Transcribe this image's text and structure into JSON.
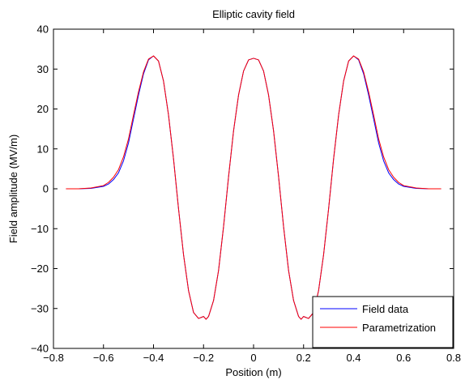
{
  "chart_data": {
    "type": "line",
    "title": "Elliptic cavity field",
    "xlabel": "Position (m)",
    "ylabel": "Field amplitude (MV/m)",
    "xlim": [
      -0.8,
      0.8
    ],
    "ylim": [
      -40,
      40
    ],
    "xticks": [
      -0.8,
      -0.6,
      -0.4,
      -0.2,
      0,
      0.2,
      0.4,
      0.6,
      0.8
    ],
    "xtick_labels": [
      "−0.8",
      "−0.6",
      "−0.4",
      "−0.2",
      "0",
      "0.2",
      "0.4",
      "0.6",
      "0.8"
    ],
    "yticks": [
      -40,
      -30,
      -20,
      -10,
      0,
      10,
      20,
      30,
      40
    ],
    "ytick_labels": [
      "−40",
      "−30",
      "−20",
      "−10",
      "0",
      "10",
      "20",
      "30",
      "40"
    ],
    "grid": false,
    "legend_position": "bottom-right",
    "series": [
      {
        "name": "Field data",
        "color": "#0000ff",
        "x": [
          -0.75,
          -0.7,
          -0.65,
          -0.6,
          -0.58,
          -0.56,
          -0.54,
          -0.52,
          -0.5,
          -0.48,
          -0.46,
          -0.44,
          -0.42,
          -0.4,
          -0.38,
          -0.36,
          -0.34,
          -0.32,
          -0.3,
          -0.28,
          -0.26,
          -0.24,
          -0.22,
          -0.2,
          -0.19,
          -0.18,
          -0.16,
          -0.14,
          -0.12,
          -0.1,
          -0.08,
          -0.06,
          -0.04,
          -0.02,
          0.0,
          0.02,
          0.04,
          0.06,
          0.08,
          0.1,
          0.12,
          0.14,
          0.16,
          0.18,
          0.19,
          0.2,
          0.22,
          0.24,
          0.26,
          0.28,
          0.3,
          0.32,
          0.34,
          0.36,
          0.38,
          0.4,
          0.42,
          0.44,
          0.46,
          0.48,
          0.5,
          0.52,
          0.54,
          0.56,
          0.58,
          0.6,
          0.65,
          0.7,
          0.75
        ],
        "y": [
          0,
          0,
          0.1,
          0.6,
          1.2,
          2.3,
          4.0,
          7.0,
          11.5,
          17.5,
          23.5,
          28.8,
          32.3,
          33.3,
          32.0,
          27.0,
          18.5,
          7.5,
          -5.0,
          -16.5,
          -25.5,
          -31.0,
          -32.5,
          -32.0,
          -32.7,
          -32.0,
          -28.0,
          -20.5,
          -9.5,
          3.0,
          14.5,
          23.5,
          29.5,
          32.3,
          32.7,
          32.3,
          29.5,
          23.5,
          14.5,
          3.0,
          -9.5,
          -20.5,
          -28.0,
          -32.0,
          -32.7,
          -32.0,
          -32.5,
          -31.0,
          -25.5,
          -16.5,
          -5.0,
          7.5,
          18.5,
          27.0,
          32.0,
          33.3,
          32.3,
          28.8,
          23.5,
          17.5,
          11.5,
          7.0,
          4.0,
          2.3,
          1.2,
          0.6,
          0.1,
          0,
          0
        ]
      },
      {
        "name": "Parametrization",
        "color": "#ff0000",
        "x": [
          -0.75,
          -0.7,
          -0.65,
          -0.6,
          -0.58,
          -0.56,
          -0.54,
          -0.52,
          -0.5,
          -0.48,
          -0.46,
          -0.44,
          -0.42,
          -0.4,
          -0.38,
          -0.36,
          -0.34,
          -0.32,
          -0.3,
          -0.28,
          -0.26,
          -0.24,
          -0.22,
          -0.2,
          -0.19,
          -0.18,
          -0.16,
          -0.14,
          -0.12,
          -0.1,
          -0.08,
          -0.06,
          -0.04,
          -0.02,
          0.0,
          0.02,
          0.04,
          0.06,
          0.08,
          0.1,
          0.12,
          0.14,
          0.16,
          0.18,
          0.19,
          0.2,
          0.22,
          0.24,
          0.26,
          0.28,
          0.3,
          0.32,
          0.34,
          0.36,
          0.38,
          0.4,
          0.42,
          0.44,
          0.46,
          0.48,
          0.5,
          0.52,
          0.54,
          0.56,
          0.58,
          0.6,
          0.65,
          0.7,
          0.75
        ],
        "y": [
          0,
          0,
          0.2,
          0.8,
          1.6,
          2.9,
          4.8,
          8.0,
          12.5,
          18.5,
          24.3,
          29.3,
          32.5,
          33.3,
          32.0,
          27.0,
          18.5,
          7.5,
          -5.0,
          -16.5,
          -25.5,
          -31.0,
          -32.5,
          -32.0,
          -32.7,
          -32.0,
          -28.0,
          -20.5,
          -9.5,
          3.0,
          14.5,
          23.5,
          29.5,
          32.3,
          32.7,
          32.3,
          29.5,
          23.5,
          14.5,
          3.0,
          -9.5,
          -20.5,
          -28.0,
          -32.0,
          -32.7,
          -32.0,
          -32.5,
          -31.0,
          -25.5,
          -16.5,
          -5.0,
          7.5,
          18.5,
          27.0,
          32.0,
          33.3,
          32.5,
          29.3,
          24.3,
          18.5,
          12.5,
          8.0,
          4.8,
          2.9,
          1.6,
          0.8,
          0.2,
          0,
          0
        ]
      }
    ]
  }
}
